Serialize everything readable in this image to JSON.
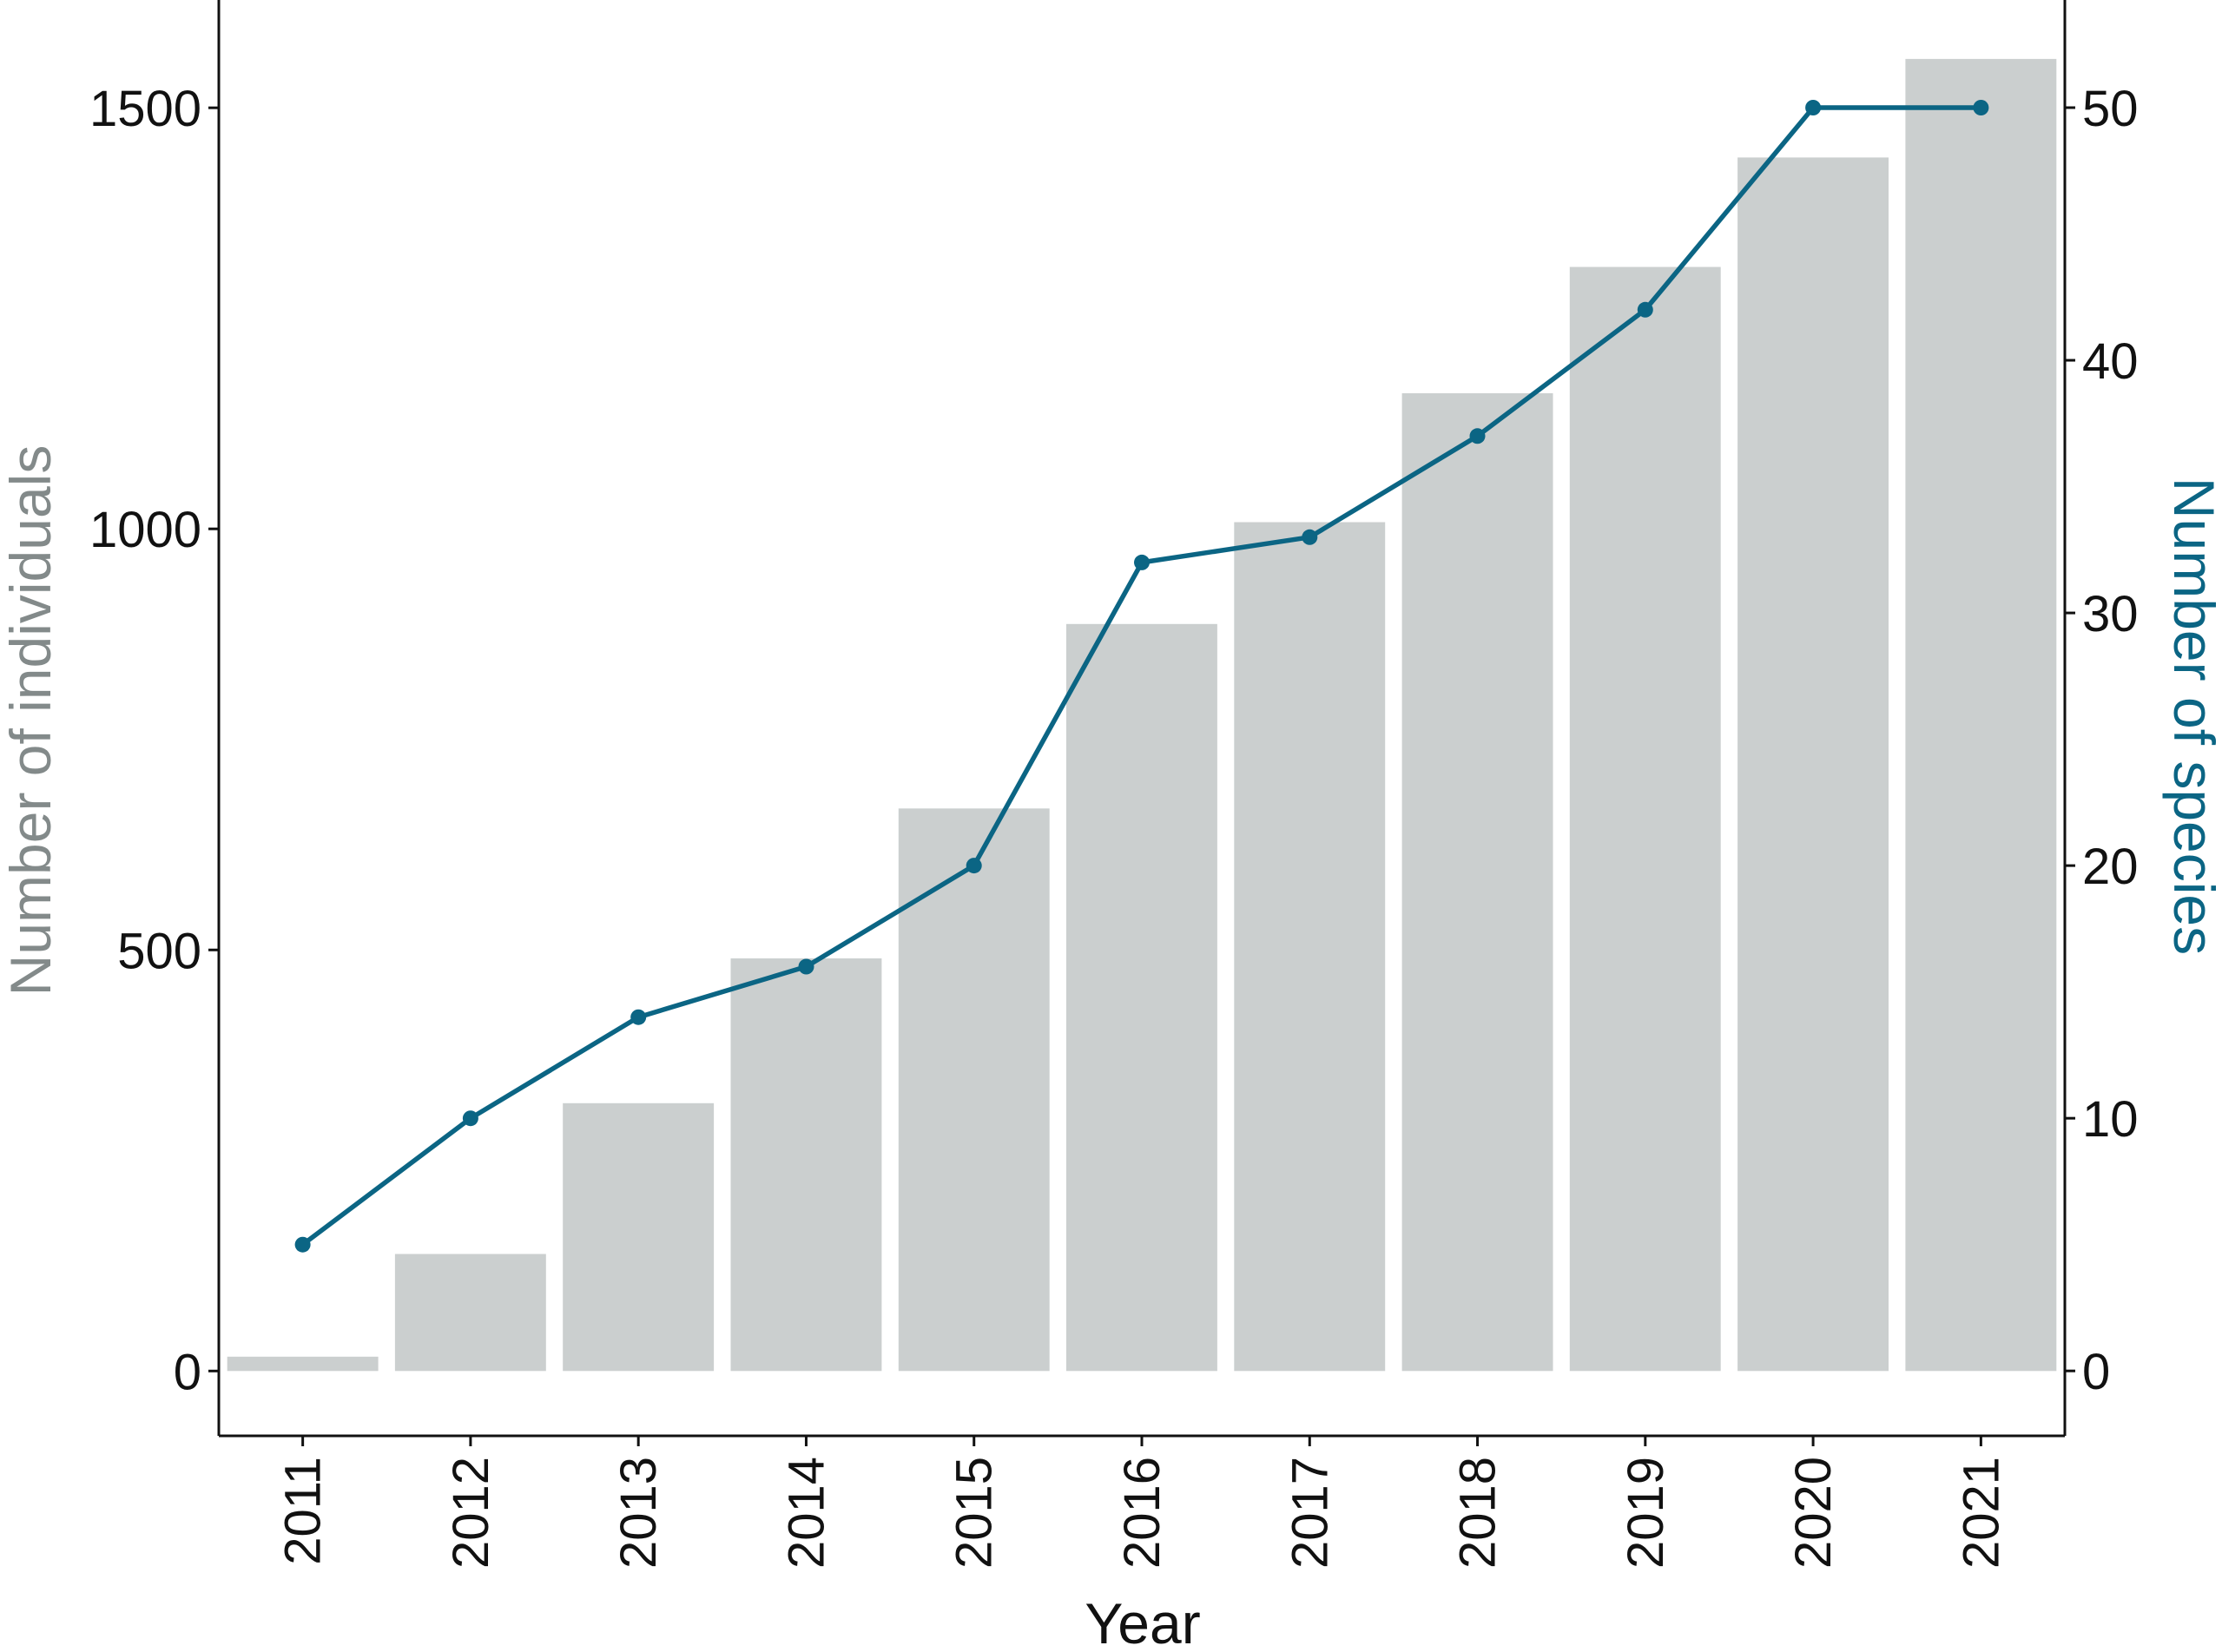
{
  "chart_data": {
    "type": "bar",
    "xlabel": "Year",
    "ylabel_left": "Number of individuals",
    "ylabel_right": "Number of species",
    "categories": [
      "2011",
      "2012",
      "2013",
      "2014",
      "2015",
      "2016",
      "2017",
      "2018",
      "2019",
      "2020",
      "2021"
    ],
    "ylim_left": [
      -77,
      1628
    ],
    "ylim_right": [
      -2.57,
      54.26
    ],
    "yticks_left": [
      0,
      500,
      1000,
      1500
    ],
    "yticks_right": [
      0,
      10,
      20,
      30,
      40,
      50
    ],
    "series": [
      {
        "type": "bar",
        "axis": "left",
        "values": [
          17,
          139,
          318,
          490,
          668,
          887,
          1008,
          1161,
          1311,
          1441,
          1558
        ]
      },
      {
        "type": "line",
        "axis": "right",
        "values": [
          5,
          10,
          14,
          16,
          20,
          32,
          33,
          37,
          42,
          50,
          50
        ]
      }
    ],
    "grid": false,
    "legend": "none",
    "colors": {
      "bars": "#cbcfcf",
      "line": "#0b6584",
      "left_label": "#838a8a",
      "right_label": "#0b6584",
      "axis": "#111111"
    }
  }
}
